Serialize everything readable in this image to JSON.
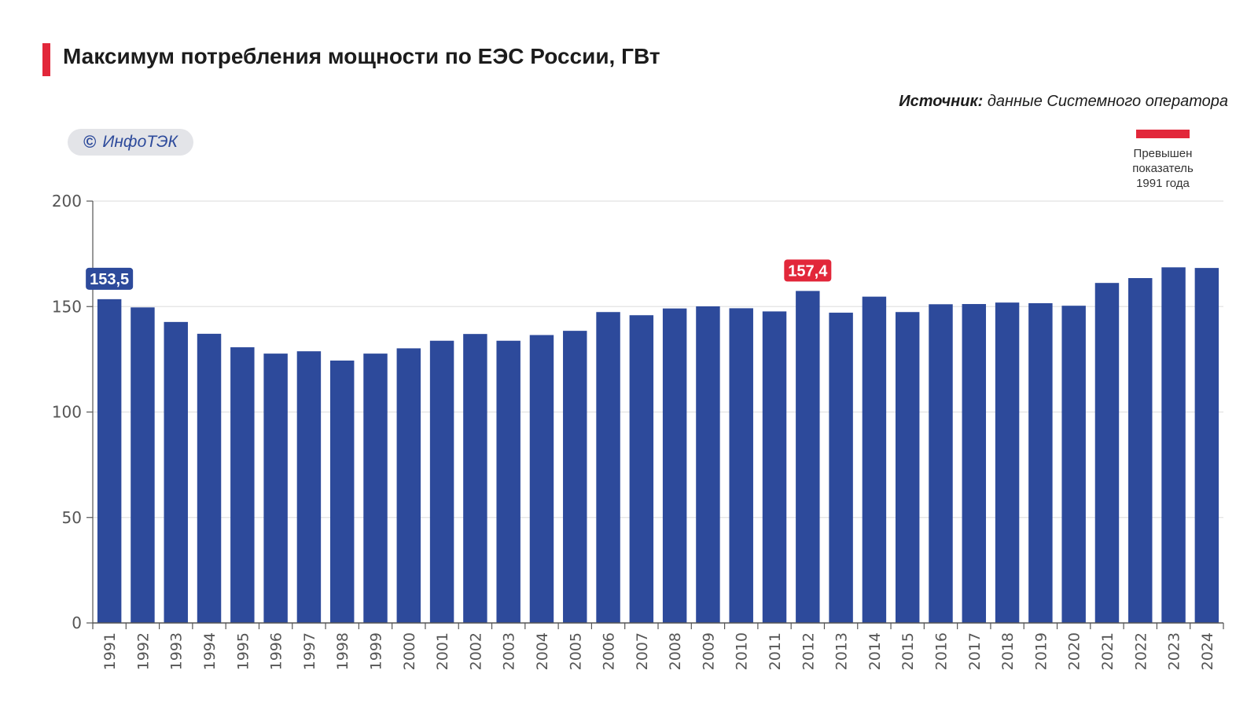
{
  "header": {
    "title": "Максимум потребления мощности по ЕЭС России, ГВт",
    "source_label": "Источник:",
    "source_text": "данные Системного оператора",
    "watermark_symbol": "©",
    "watermark_text": "ИнфоТЭК"
  },
  "legend": {
    "line1": "Превышен",
    "line2": "показатель",
    "line3": "1991 года",
    "color": "#e2273a"
  },
  "colors": {
    "bar": "#2d4a9b",
    "highlight": "#e2273a",
    "grid": "#e2e2e2",
    "axis": "#555555"
  },
  "chart_data": {
    "type": "bar",
    "title": "Максимум потребления мощности по ЕЭС России, ГВт",
    "xlabel": "",
    "ylabel": "",
    "ylim": [
      0,
      200
    ],
    "yticks": [
      0,
      50,
      100,
      150,
      200
    ],
    "grid": true,
    "categories": [
      "1991",
      "1992",
      "1993",
      "1994",
      "1995",
      "1996",
      "1997",
      "1998",
      "1999",
      "2000",
      "2001",
      "2002",
      "2003",
      "2004",
      "2005",
      "2006",
      "2007",
      "2008",
      "2009",
      "2010",
      "2011",
      "2012",
      "2013",
      "2014",
      "2015",
      "2016",
      "2017",
      "2018",
      "2019",
      "2020",
      "2021",
      "2022",
      "2023",
      "2024"
    ],
    "values": [
      153.5,
      149.6,
      142.7,
      137.1,
      130.7,
      127.7,
      128.8,
      124.4,
      127.7,
      130.2,
      133.8,
      137.0,
      133.8,
      136.5,
      138.5,
      147.4,
      145.9,
      149.1,
      150.1,
      149.2,
      147.7,
      157.4,
      147.1,
      154.7,
      147.4,
      151.1,
      151.2,
      151.9,
      151.6,
      150.4,
      161.2,
      163.5,
      168.6,
      168.3
    ],
    "annotations": [
      {
        "category": "1991",
        "label": "153,5",
        "style": "blue"
      },
      {
        "category": "2012",
        "label": "157,4",
        "style": "red"
      }
    ]
  }
}
